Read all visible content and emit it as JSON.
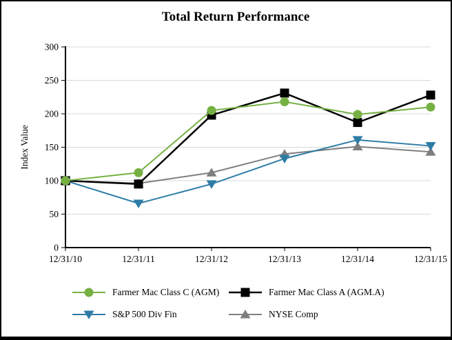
{
  "chart_data": {
    "type": "line",
    "title": "Total Return Performance",
    "xlabel": "",
    "ylabel": "Index Value",
    "ylim": [
      0,
      300
    ],
    "yticks": [
      0,
      50,
      100,
      150,
      200,
      250,
      300
    ],
    "grid": "horizontal",
    "legend_position": "bottom",
    "categories": [
      "12/31/10",
      "12/31/11",
      "12/31/12",
      "12/31/13",
      "12/31/14",
      "12/31/15"
    ],
    "series": [
      {
        "name": "Farmer Mac Class C (AGM)",
        "color": "#76B043",
        "marker": "circle",
        "line_width": 2,
        "values": [
          100,
          112,
          205,
          218,
          199,
          210
        ]
      },
      {
        "name": "Farmer Mac Class A (AGM.A)",
        "color": "#000000",
        "marker": "square",
        "line_width": 2.5,
        "values": [
          100,
          95,
          198,
          231,
          187,
          228
        ]
      },
      {
        "name": "S&P 500 Div Fin",
        "color": "#2E7CA6",
        "marker": "triangle-down",
        "line_width": 2,
        "values": [
          100,
          66,
          95,
          133,
          161,
          152
        ]
      },
      {
        "name": "NYSE Comp",
        "color": "#7F7F7F",
        "marker": "triangle-up",
        "line_width": 2,
        "values": [
          100,
          96,
          112,
          140,
          151,
          143
        ]
      }
    ]
  },
  "colors": {
    "background": "#FFFFFF",
    "border": "#000000",
    "axis": "#000000",
    "gridline": "#D9D9D9",
    "text": "#000000"
  }
}
